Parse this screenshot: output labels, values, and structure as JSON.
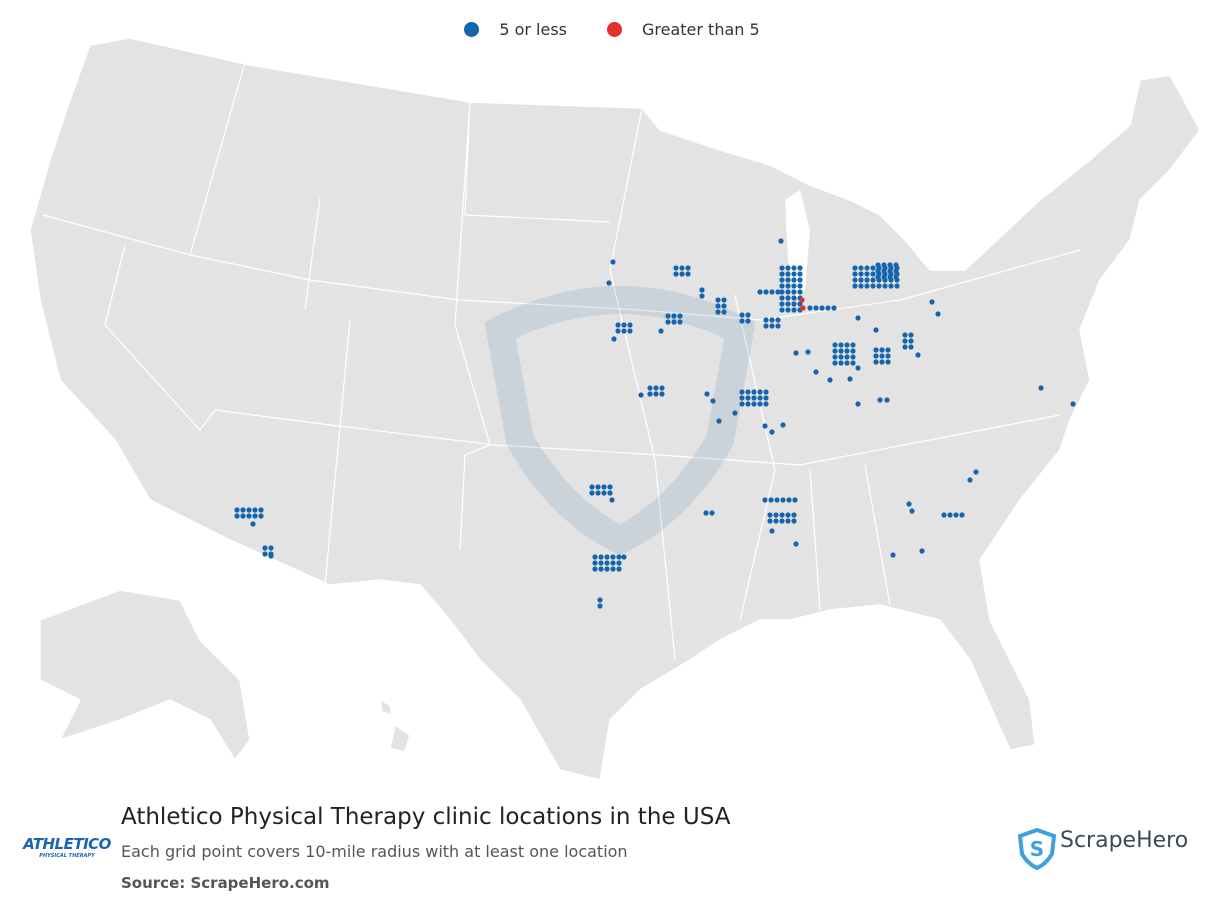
{
  "legend": {
    "items": [
      {
        "label": "5 or less",
        "color": "#1565ad"
      },
      {
        "label": "Greater than 5",
        "color": "#e0312a"
      }
    ]
  },
  "title": "Athletico Physical Therapy clinic locations in the USA",
  "subtitle": "Each grid point covers 10-mile radius with at least one location",
  "source": "Source: ScrapeHero.com",
  "logos": {
    "athletico": {
      "name": "ATHLETICO",
      "tagline": "PHYSICAL THERAPY"
    },
    "scrapehero": "ScrapeHero"
  }
}
